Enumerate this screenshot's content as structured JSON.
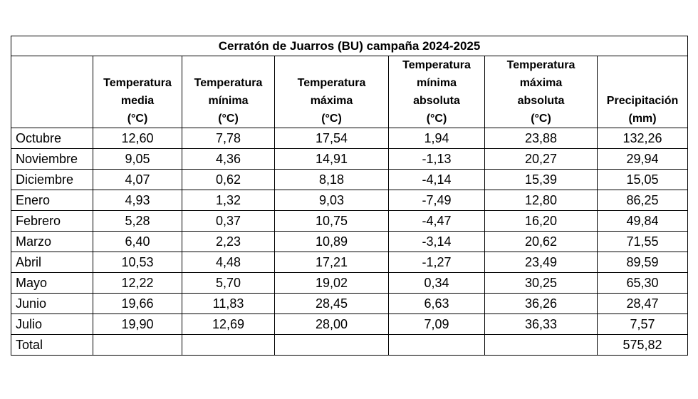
{
  "table": {
    "title": "Cerratón de Juarros (BU) campaña 2024-2025",
    "headers": [
      [
        "Temperatura",
        "media",
        "(°C)"
      ],
      [
        "Temperatura",
        "mínima",
        "(°C)"
      ],
      [
        "Temperatura",
        "máxima",
        "(°C)"
      ],
      [
        "Temperatura",
        "mínima",
        "absoluta",
        "(°C)"
      ],
      [
        "Temperatura",
        "máxima",
        "absoluta",
        "(°C)"
      ],
      [
        "Precipitación",
        "(mm)"
      ]
    ],
    "rows": [
      {
        "month": "Octubre",
        "values": [
          "12,60",
          "7,78",
          "17,54",
          "1,94",
          "23,88",
          "132,26"
        ]
      },
      {
        "month": "Noviembre",
        "values": [
          "9,05",
          "4,36",
          "14,91",
          "-1,13",
          "20,27",
          "29,94"
        ]
      },
      {
        "month": "Diciembre",
        "values": [
          "4,07",
          "0,62",
          "8,18",
          "-4,14",
          "15,39",
          "15,05"
        ]
      },
      {
        "month": "Enero",
        "values": [
          "4,93",
          "1,32",
          "9,03",
          "-7,49",
          "12,80",
          "86,25"
        ]
      },
      {
        "month": "Febrero",
        "values": [
          "5,28",
          "0,37",
          "10,75",
          "-4,47",
          "16,20",
          "49,84"
        ]
      },
      {
        "month": "Marzo",
        "values": [
          "6,40",
          "2,23",
          "10,89",
          "-3,14",
          "20,62",
          "71,55"
        ]
      },
      {
        "month": "Abril",
        "values": [
          "10,53",
          "4,48",
          "17,21",
          "-1,27",
          "23,49",
          "89,59"
        ]
      },
      {
        "month": "Mayo",
        "values": [
          "12,22",
          "5,70",
          "19,02",
          "0,34",
          "30,25",
          "65,30"
        ]
      },
      {
        "month": "Junio",
        "values": [
          "19,66",
          "11,83",
          "28,45",
          "6,63",
          "36,26",
          "28,47"
        ]
      },
      {
        "month": "Julio",
        "values": [
          "19,90",
          "12,69",
          "28,00",
          "7,09",
          "36,33",
          "7,57"
        ]
      }
    ],
    "total": {
      "label": "Total",
      "precipitation": "575,82"
    }
  }
}
